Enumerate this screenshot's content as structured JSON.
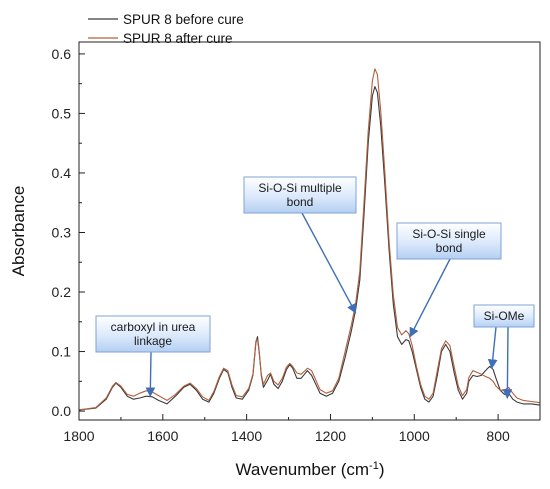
{
  "chart_data": {
    "type": "line",
    "title": "",
    "xlabel": "Wavenumber (cm",
    "xlabel_sup": "-1",
    "xlabel_end": ")",
    "ylabel": "Absorbance",
    "xlim": [
      1800,
      700
    ],
    "ylim": [
      -0.015,
      0.62
    ],
    "x_reversed": true,
    "grid": false,
    "legend_position": "top-left",
    "xticks": [
      1800,
      1600,
      1400,
      1200,
      1000,
      800
    ],
    "xtick_labels": [
      "1800",
      "1600",
      "1400",
      "1200",
      "1000",
      "800"
    ],
    "yticks": [
      0.0,
      0.1,
      0.2,
      0.3,
      0.4,
      0.5,
      0.6
    ],
    "ytick_labels": [
      "0.0",
      "0.1",
      "0.2",
      "0.3",
      "0.4",
      "0.5",
      "0.6"
    ],
    "series": [
      {
        "name": "SPUR 8 before cure",
        "color": "#3a3a3a",
        "x": [
          1800,
          1760,
          1735,
          1720,
          1712,
          1700,
          1685,
          1670,
          1655,
          1640,
          1625,
          1610,
          1590,
          1570,
          1550,
          1535,
          1520,
          1505,
          1490,
          1478,
          1465,
          1455,
          1445,
          1435,
          1425,
          1410,
          1395,
          1385,
          1378,
          1374,
          1370,
          1365,
          1360,
          1350,
          1343,
          1335,
          1325,
          1315,
          1305,
          1297,
          1290,
          1280,
          1270,
          1262,
          1255,
          1245,
          1235,
          1225,
          1210,
          1195,
          1180,
          1165,
          1150,
          1140,
          1130,
          1120,
          1110,
          1100,
          1094,
          1088,
          1080,
          1070,
          1060,
          1050,
          1040,
          1030,
          1020,
          1013,
          1005,
          995,
          985,
          975,
          965,
          955,
          945,
          935,
          925,
          915,
          905,
          895,
          885,
          875,
          870,
          860,
          850,
          840,
          830,
          820,
          812,
          805,
          795,
          785,
          775,
          765,
          755,
          740,
          720,
          700
        ],
        "y": [
          0.002,
          0.005,
          0.02,
          0.04,
          0.047,
          0.04,
          0.025,
          0.02,
          0.022,
          0.025,
          0.024,
          0.018,
          0.012,
          0.025,
          0.04,
          0.045,
          0.035,
          0.02,
          0.015,
          0.03,
          0.055,
          0.07,
          0.065,
          0.04,
          0.022,
          0.02,
          0.035,
          0.06,
          0.115,
          0.125,
          0.1,
          0.06,
          0.04,
          0.052,
          0.062,
          0.045,
          0.038,
          0.05,
          0.07,
          0.078,
          0.072,
          0.055,
          0.055,
          0.062,
          0.068,
          0.06,
          0.045,
          0.03,
          0.025,
          0.03,
          0.05,
          0.09,
          0.135,
          0.17,
          0.22,
          0.33,
          0.45,
          0.53,
          0.545,
          0.535,
          0.48,
          0.38,
          0.27,
          0.18,
          0.125,
          0.112,
          0.12,
          0.118,
          0.1,
          0.07,
          0.04,
          0.02,
          0.015,
          0.025,
          0.06,
          0.1,
          0.112,
          0.1,
          0.065,
          0.035,
          0.02,
          0.03,
          0.05,
          0.06,
          0.058,
          0.06,
          0.068,
          0.075,
          0.07,
          0.055,
          0.035,
          0.028,
          0.03,
          0.02,
          0.015,
          0.012,
          0.012,
          0.01
        ]
      },
      {
        "name": "SPUR 8 after cure",
        "color": "#b3603e",
        "x": [
          1800,
          1760,
          1735,
          1720,
          1712,
          1700,
          1685,
          1670,
          1655,
          1640,
          1625,
          1610,
          1590,
          1570,
          1550,
          1535,
          1520,
          1505,
          1490,
          1478,
          1465,
          1455,
          1445,
          1435,
          1425,
          1410,
          1395,
          1385,
          1378,
          1374,
          1370,
          1365,
          1360,
          1350,
          1343,
          1335,
          1325,
          1315,
          1305,
          1297,
          1290,
          1280,
          1270,
          1262,
          1255,
          1245,
          1235,
          1225,
          1210,
          1195,
          1180,
          1165,
          1150,
          1140,
          1130,
          1120,
          1110,
          1100,
          1094,
          1088,
          1080,
          1070,
          1060,
          1050,
          1040,
          1030,
          1020,
          1013,
          1005,
          995,
          985,
          975,
          965,
          955,
          945,
          935,
          925,
          915,
          905,
          895,
          885,
          875,
          870,
          860,
          850,
          840,
          830,
          820,
          812,
          805,
          795,
          785,
          775,
          765,
          755,
          740,
          720,
          700
        ],
        "y": [
          0.002,
          0.006,
          0.022,
          0.042,
          0.048,
          0.042,
          0.028,
          0.025,
          0.03,
          0.034,
          0.032,
          0.026,
          0.018,
          0.028,
          0.042,
          0.047,
          0.038,
          0.024,
          0.018,
          0.033,
          0.058,
          0.072,
          0.068,
          0.044,
          0.026,
          0.024,
          0.038,
          0.062,
          0.118,
          0.12,
          0.098,
          0.062,
          0.045,
          0.06,
          0.064,
          0.05,
          0.044,
          0.055,
          0.074,
          0.08,
          0.075,
          0.064,
          0.062,
          0.067,
          0.072,
          0.068,
          0.052,
          0.036,
          0.03,
          0.034,
          0.055,
          0.1,
          0.145,
          0.18,
          0.235,
          0.35,
          0.47,
          0.555,
          0.575,
          0.565,
          0.505,
          0.4,
          0.285,
          0.195,
          0.14,
          0.128,
          0.135,
          0.13,
          0.11,
          0.075,
          0.045,
          0.025,
          0.02,
          0.03,
          0.068,
          0.105,
          0.118,
          0.11,
          0.075,
          0.042,
          0.026,
          0.036,
          0.056,
          0.068,
          0.065,
          0.062,
          0.058,
          0.055,
          0.05,
          0.042,
          0.035,
          0.035,
          0.04,
          0.03,
          0.022,
          0.018,
          0.016,
          0.014
        ]
      }
    ],
    "annotations": [
      {
        "text_lines": [
          "carboxyl in urea",
          "linkage"
        ],
        "arrow_targets": [
          [
            1630,
            0.025
          ]
        ]
      },
      {
        "text_lines": [
          "Si-O-Si multiple",
          "bond"
        ],
        "arrow_targets": [
          [
            1140,
            0.165
          ]
        ]
      },
      {
        "text_lines": [
          "Si-O-Si single",
          "bond"
        ],
        "arrow_targets": [
          [
            1010,
            0.125
          ]
        ]
      },
      {
        "text_lines": [
          "Si-OMe"
        ],
        "arrow_targets": [
          [
            815,
            0.072
          ],
          [
            778,
            0.022
          ]
        ]
      }
    ]
  }
}
